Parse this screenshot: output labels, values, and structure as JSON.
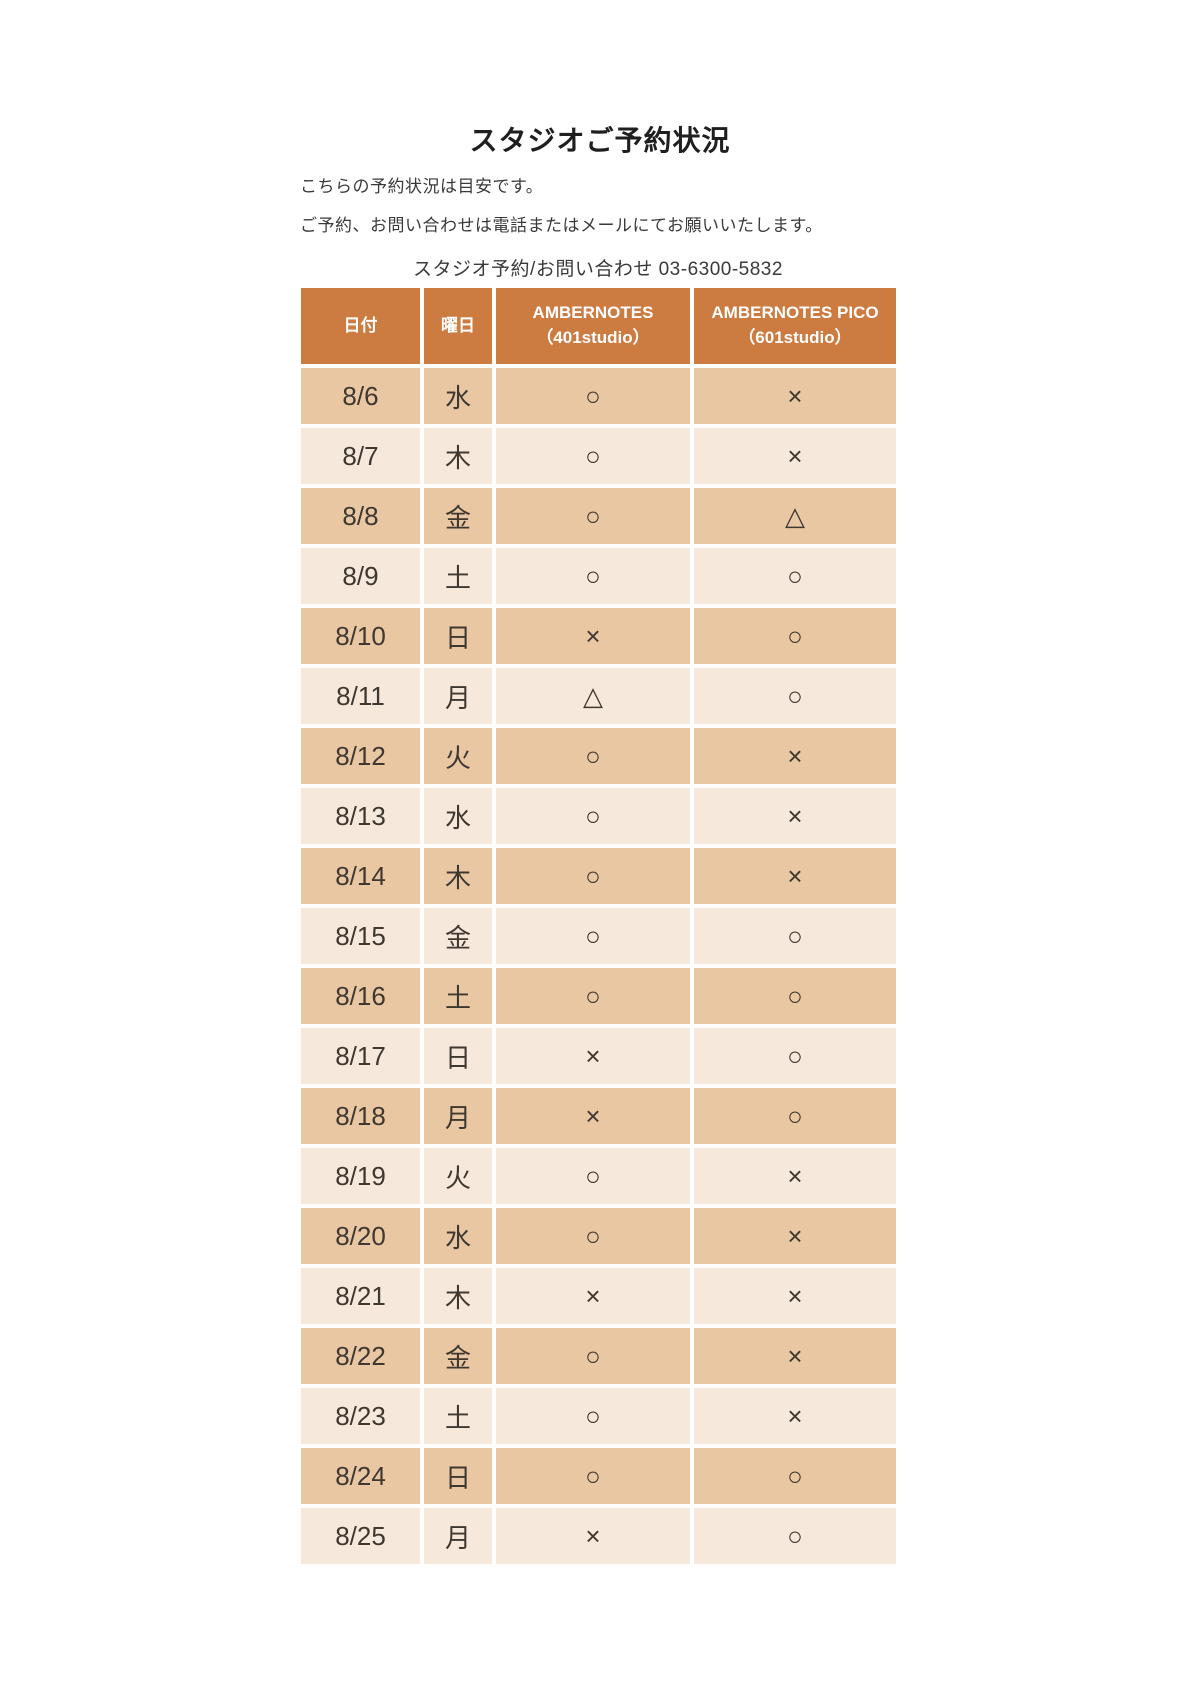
{
  "page": {
    "title": "スタジオご予約状況",
    "note1": "こちらの予約状況は目安です。",
    "note2": "ご予約、お問い合わせは電話またはメールにてお願いいたします。",
    "contact": "スタジオ予約/お問い合わせ 03-6300-5832"
  },
  "table": {
    "headers": {
      "date": "日付",
      "day": "曜日",
      "studio401_name": "AMBERNOTES",
      "studio401_sub": "（401studio）",
      "studio601_name": "AMBERNOTES PICO",
      "studio601_sub": "（601studio）"
    },
    "legend_symbols": {
      "available": "○",
      "unavailable": "×",
      "partial": "△"
    },
    "rows": [
      {
        "date": "8/6",
        "day": "水",
        "s401": "○",
        "s601": "×"
      },
      {
        "date": "8/7",
        "day": "木",
        "s401": "○",
        "s601": "×"
      },
      {
        "date": "8/8",
        "day": "金",
        "s401": "○",
        "s601": "△"
      },
      {
        "date": "8/9",
        "day": "土",
        "s401": "○",
        "s601": "○"
      },
      {
        "date": "8/10",
        "day": "日",
        "s401": "×",
        "s601": "○"
      },
      {
        "date": "8/11",
        "day": "月",
        "s401": "△",
        "s601": "○"
      },
      {
        "date": "8/12",
        "day": "火",
        "s401": "○",
        "s601": "×"
      },
      {
        "date": "8/13",
        "day": "水",
        "s401": "○",
        "s601": "×"
      },
      {
        "date": "8/14",
        "day": "木",
        "s401": "○",
        "s601": "×"
      },
      {
        "date": "8/15",
        "day": "金",
        "s401": "○",
        "s601": "○"
      },
      {
        "date": "8/16",
        "day": "土",
        "s401": "○",
        "s601": "○"
      },
      {
        "date": "8/17",
        "day": "日",
        "s401": "×",
        "s601": "○"
      },
      {
        "date": "8/18",
        "day": "月",
        "s401": "×",
        "s601": "○"
      },
      {
        "date": "8/19",
        "day": "火",
        "s401": "○",
        "s601": "×"
      },
      {
        "date": "8/20",
        "day": "水",
        "s401": "○",
        "s601": "×"
      },
      {
        "date": "8/21",
        "day": "木",
        "s401": "×",
        "s601": "×"
      },
      {
        "date": "8/22",
        "day": "金",
        "s401": "○",
        "s601": "×"
      },
      {
        "date": "8/23",
        "day": "土",
        "s401": "○",
        "s601": "×"
      },
      {
        "date": "8/24",
        "day": "日",
        "s401": "○",
        "s601": "○"
      },
      {
        "date": "8/25",
        "day": "月",
        "s401": "×",
        "s601": "○"
      }
    ]
  },
  "colors": {
    "header_bg": "#cc7b41",
    "row_dark": "#eac7a3",
    "row_light": "#f6e8da",
    "header_text": "#ffffff",
    "body_text": "#3e3831"
  }
}
